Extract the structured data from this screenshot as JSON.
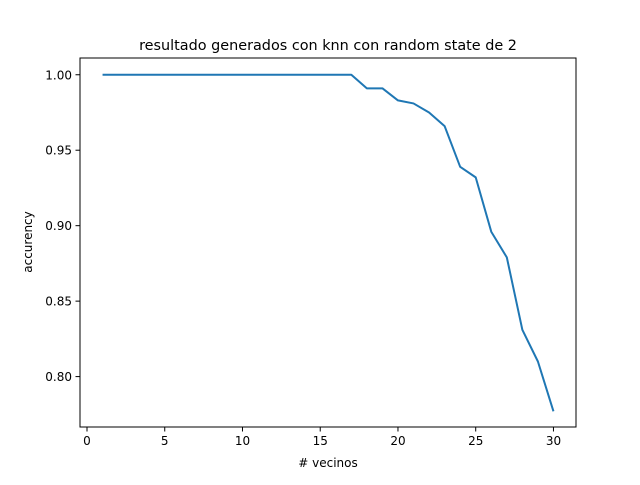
{
  "chart_data": {
    "type": "line",
    "title": "resultado generados con knn con random state de 2",
    "xlabel": "# vecinos",
    "ylabel": "accurency",
    "xlim": [
      -0.45,
      31.45
    ],
    "ylim": [
      0.7666,
      1.0111
    ],
    "xticks": [
      0,
      5,
      10,
      15,
      20,
      25,
      30
    ],
    "yticks": [
      0.8,
      0.85,
      0.9,
      0.95,
      1.0
    ],
    "xtick_labels": [
      "0",
      "5",
      "10",
      "15",
      "20",
      "25",
      "30"
    ],
    "ytick_labels": [
      "0.80",
      "0.85",
      "0.90",
      "0.95",
      "1.00"
    ],
    "grid": false,
    "legend": "none",
    "series": [
      {
        "color": "#1f77b4",
        "x": [
          1,
          2,
          3,
          4,
          5,
          6,
          7,
          8,
          9,
          10,
          11,
          12,
          13,
          14,
          15,
          16,
          17,
          18,
          19,
          20,
          21,
          22,
          23,
          24,
          25,
          26,
          27,
          28,
          29,
          30
        ],
        "y": [
          1.0,
          1.0,
          1.0,
          1.0,
          1.0,
          1.0,
          1.0,
          1.0,
          1.0,
          1.0,
          1.0,
          1.0,
          1.0,
          1.0,
          1.0,
          1.0,
          1.0,
          0.991,
          0.991,
          0.983,
          0.981,
          0.975,
          0.966,
          0.939,
          0.932,
          0.896,
          0.879,
          0.831,
          0.81,
          0.777
        ]
      }
    ]
  }
}
